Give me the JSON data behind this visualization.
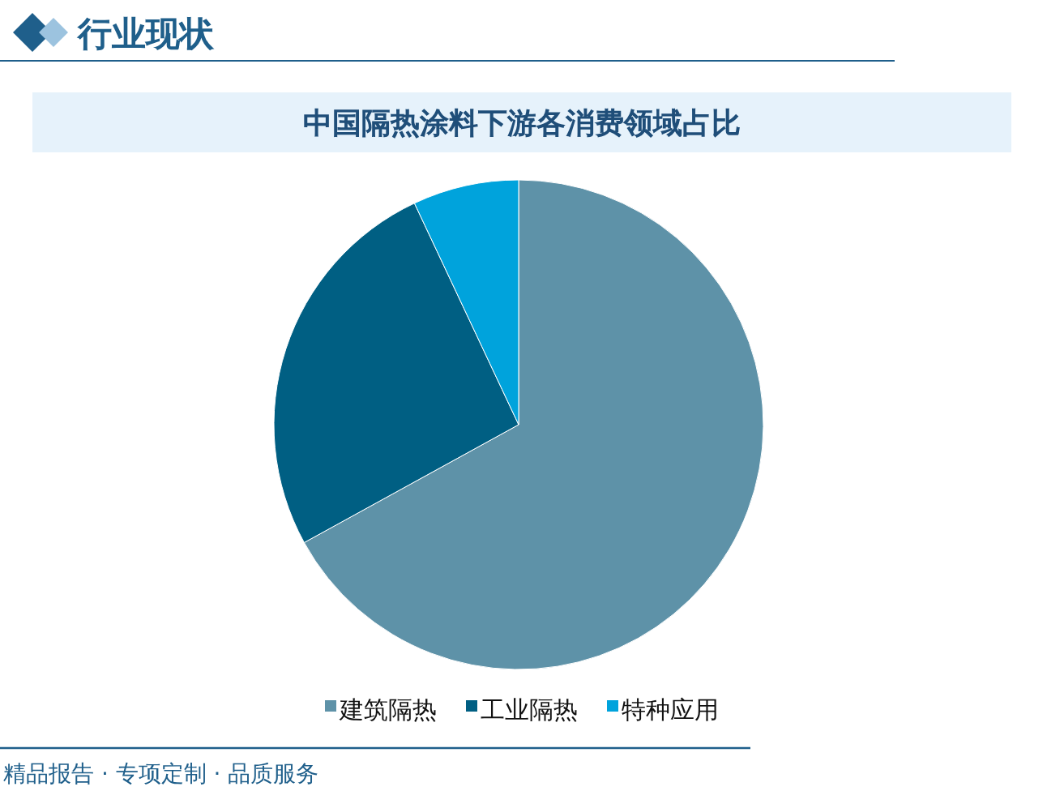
{
  "chart_data": {
    "type": "pie",
    "title": "中国隔热涂料下游各消费领域占比",
    "categories": [
      "建筑隔热",
      "工业隔热",
      "特种应用"
    ],
    "values": [
      67,
      26,
      7
    ],
    "colors": [
      "#5e92a8",
      "#005f83",
      "#00a3dc"
    ],
    "legend": "bottom",
    "annotations": [
      "行业现状",
      "精品报告 · 专项定制 · 品质服务"
    ]
  }
}
